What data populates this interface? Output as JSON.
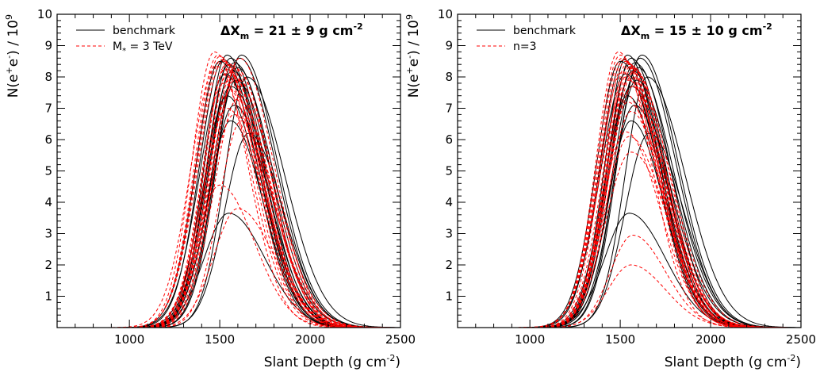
{
  "chart_data": [
    {
      "type": "line",
      "title": "",
      "xlabel": "Slant Depth (g cm",
      "xlabel_sup": "-2",
      "xlabel_end": ")",
      "ylabel": "N(e",
      "ylabel_sup1": "+",
      "ylabel_mid": "e",
      "ylabel_sup2": "-",
      "ylabel_end": ") / 10",
      "ylabel_sup3": "9",
      "xlim": [
        600,
        2500
      ],
      "ylim": [
        0,
        10
      ],
      "xticks": [
        "1000",
        "1500",
        "2000",
        "2500"
      ],
      "yticks": [
        "1",
        "2",
        "3",
        "4",
        "5",
        "6",
        "7",
        "8",
        "9",
        "10"
      ],
      "annotation": {
        "pre": "ΔX",
        "sub": "m",
        "post": " = 21 ± 9 g cm",
        "sup": "-2"
      },
      "legend": [
        {
          "label": "benchmark",
          "style": "solid",
          "color": "#000000"
        },
        {
          "label": "M",
          "sub": "*",
          "rest": " = 3 TeV",
          "style": "dashed",
          "color": "#ff0000"
        }
      ],
      "series": [
        {
          "style": "solid",
          "color": "#000000",
          "peaks": [
            [
              1540,
              8.7
            ],
            [
              1560,
              8.6
            ],
            [
              1520,
              8.55
            ],
            [
              1580,
              8.45
            ],
            [
              1600,
              8.3
            ],
            [
              1550,
              8.4
            ],
            [
              1610,
              8.6
            ],
            [
              1500,
              8.5
            ],
            [
              1570,
              8.2
            ],
            [
              1530,
              8.1
            ],
            [
              1590,
              7.9
            ],
            [
              1560,
              7.7
            ],
            [
              1540,
              7.4
            ],
            [
              1580,
              7.1
            ],
            [
              1620,
              8.7
            ],
            [
              1650,
              8.0
            ],
            [
              1560,
              6.6
            ],
            [
              1660,
              6.2
            ],
            [
              1550,
              3.65
            ]
          ]
        },
        {
          "style": "dashed",
          "color": "#ff0000",
          "peaks": [
            [
              1470,
              8.8
            ],
            [
              1490,
              8.7
            ],
            [
              1500,
              8.65
            ],
            [
              1510,
              8.55
            ],
            [
              1520,
              8.5
            ],
            [
              1540,
              8.45
            ],
            [
              1560,
              8.4
            ],
            [
              1580,
              8.3
            ],
            [
              1600,
              8.2
            ],
            [
              1480,
              8.35
            ],
            [
              1530,
              8.25
            ],
            [
              1550,
              8.15
            ],
            [
              1570,
              8.05
            ],
            [
              1610,
              8.6
            ],
            [
              1590,
              7.95
            ],
            [
              1520,
              7.8
            ],
            [
              1560,
              7.6
            ],
            [
              1600,
              7.3
            ],
            [
              1540,
              7.0
            ],
            [
              1580,
              6.8
            ],
            [
              1620,
              6.6
            ],
            [
              1500,
              4.55
            ],
            [
              1600,
              3.8
            ]
          ]
        }
      ]
    },
    {
      "type": "line",
      "title": "",
      "xlabel": "Slant Depth (g cm",
      "xlabel_sup": "-2",
      "xlabel_end": ")",
      "ylabel": "N(e",
      "ylabel_sup1": "+",
      "ylabel_mid": "e",
      "ylabel_sup2": "-",
      "ylabel_end": ") / 10",
      "ylabel_sup3": "9",
      "xlim": [
        600,
        2500
      ],
      "ylim": [
        0,
        10
      ],
      "xticks": [
        "1000",
        "1500",
        "2000",
        "2500"
      ],
      "yticks": [
        "1",
        "2",
        "3",
        "4",
        "5",
        "6",
        "7",
        "8",
        "9",
        "10"
      ],
      "annotation": {
        "pre": "ΔX",
        "sub": "m",
        "post": " = 15 ± 10 g cm",
        "sup": "-2"
      },
      "legend": [
        {
          "label": "benchmark",
          "style": "solid",
          "color": "#000000"
        },
        {
          "label": "n=3",
          "sub": "",
          "rest": "",
          "style": "dashed",
          "color": "#ff0000"
        }
      ],
      "series": [
        {
          "style": "solid",
          "color": "#000000",
          "peaks": [
            [
              1540,
              8.7
            ],
            [
              1560,
              8.6
            ],
            [
              1520,
              8.55
            ],
            [
              1580,
              8.45
            ],
            [
              1600,
              8.3
            ],
            [
              1550,
              8.4
            ],
            [
              1610,
              8.6
            ],
            [
              1500,
              8.5
            ],
            [
              1570,
              8.2
            ],
            [
              1530,
              8.1
            ],
            [
              1590,
              7.9
            ],
            [
              1560,
              7.7
            ],
            [
              1540,
              7.4
            ],
            [
              1580,
              7.1
            ],
            [
              1620,
              8.7
            ],
            [
              1650,
              8.0
            ],
            [
              1560,
              6.6
            ],
            [
              1660,
              6.2
            ],
            [
              1550,
              3.65
            ]
          ]
        },
        {
          "style": "dashed",
          "color": "#ff0000",
          "peaks": [
            [
              1490,
              8.8
            ],
            [
              1500,
              8.7
            ],
            [
              1510,
              8.6
            ],
            [
              1520,
              8.55
            ],
            [
              1530,
              8.5
            ],
            [
              1540,
              8.45
            ],
            [
              1550,
              8.4
            ],
            [
              1560,
              8.35
            ],
            [
              1570,
              8.3
            ],
            [
              1580,
              8.2
            ],
            [
              1510,
              8.15
            ],
            [
              1530,
              8.0
            ],
            [
              1550,
              7.9
            ],
            [
              1570,
              7.7
            ],
            [
              1520,
              7.5
            ],
            [
              1540,
              7.2
            ],
            [
              1560,
              6.9
            ],
            [
              1530,
              6.25
            ],
            [
              1550,
              6.1
            ],
            [
              1560,
              5.6
            ],
            [
              1570,
              2.95
            ],
            [
              1560,
              2.0
            ]
          ]
        }
      ]
    }
  ]
}
